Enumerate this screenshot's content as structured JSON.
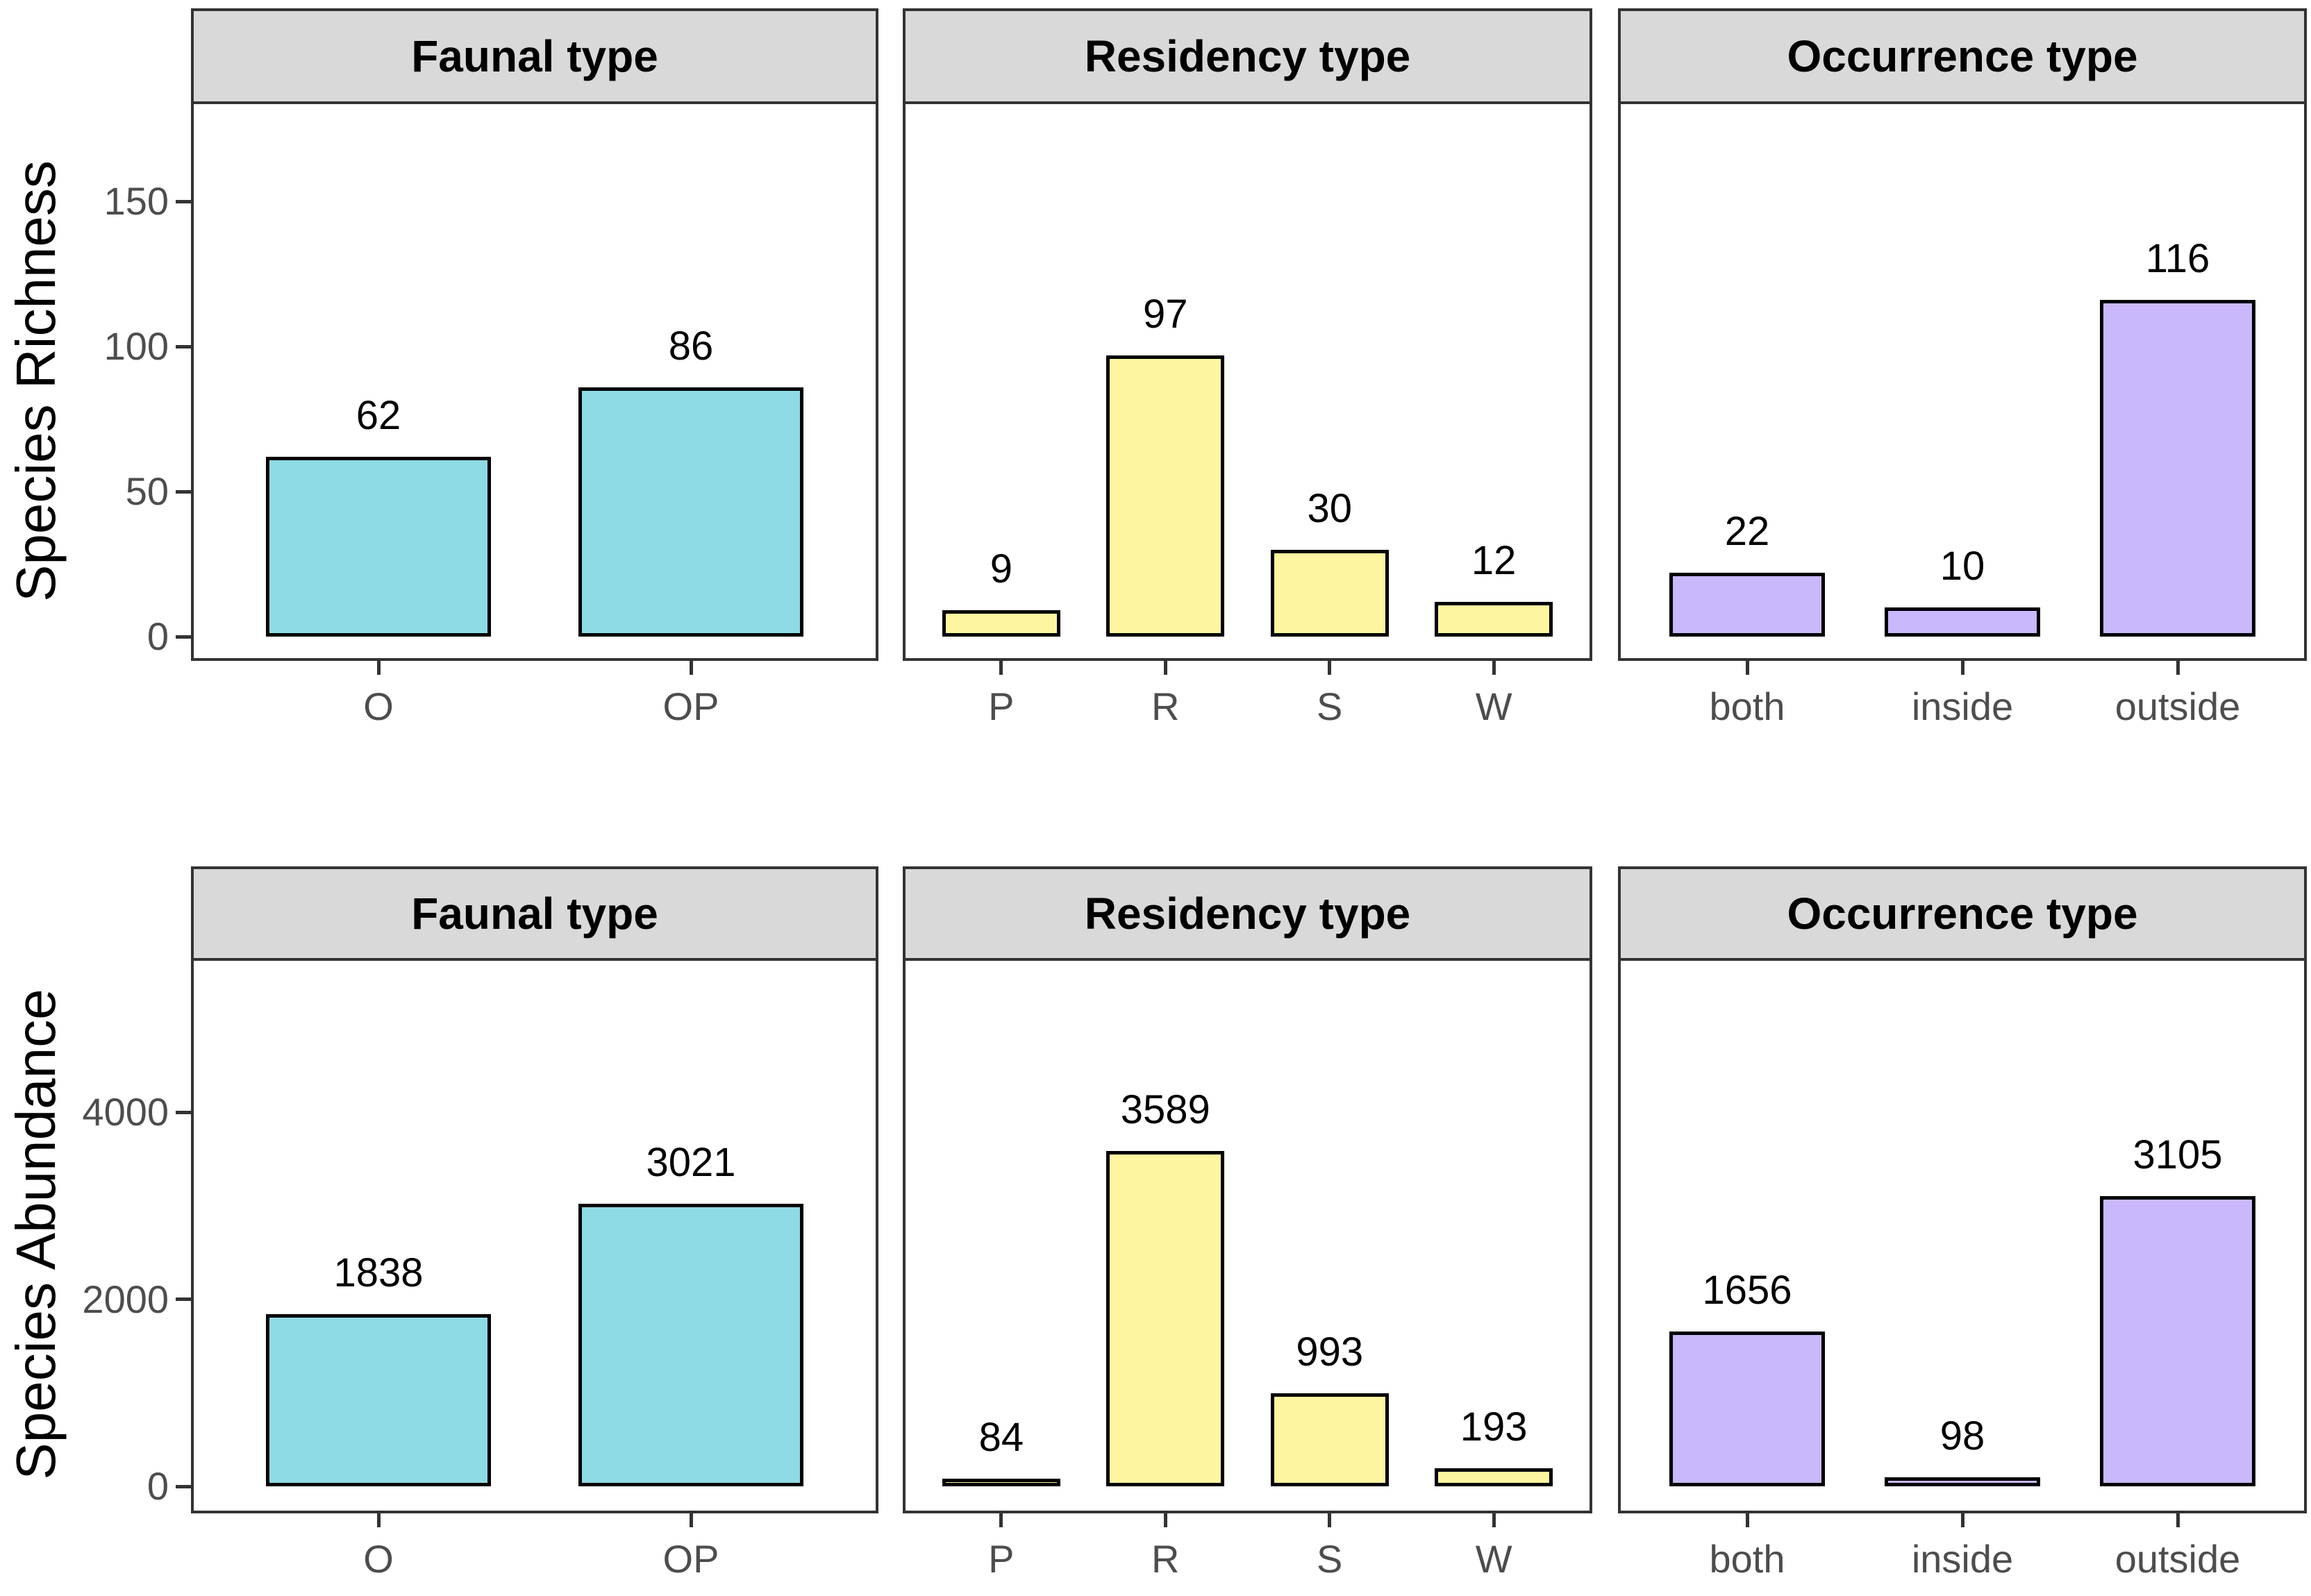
{
  "chart_data": {
    "type": "bar",
    "layout": "faceted bar charts, 2 rows x 3 columns (ggplot-style facet strips), grid off, no legend, value labels above bars",
    "colors": {
      "faunal": "#8FDBE4",
      "residency": "#FDF5A0",
      "occurrence": "#C9B8FB",
      "strip_bg": "#D9D9D9",
      "panel_border": "#333333",
      "bar_outline": "#000000",
      "tick_text": "#4D4D4D",
      "value_text": "#000000"
    },
    "rows": [
      {
        "ylabel": "Species Richness",
        "yticks": [
          0,
          50,
          100,
          150
        ],
        "ylim": [
          0,
          184
        ],
        "panels": [
          {
            "title": "Faunal type",
            "categories": [
              "O",
              "OP"
            ],
            "values": [
              62,
              86
            ],
            "color_key": "faunal"
          },
          {
            "title": "Residency type",
            "categories": [
              "P",
              "R",
              "S",
              "W"
            ],
            "values": [
              9,
              97,
              30,
              12
            ],
            "color_key": "residency"
          },
          {
            "title": "Occurrence type",
            "categories": [
              "both",
              "inside",
              "outside"
            ],
            "values": [
              22,
              10,
              116
            ],
            "color_key": "occurrence"
          }
        ]
      },
      {
        "ylabel": "Species Abundance",
        "yticks": [
          0,
          2000,
          4000
        ],
        "ylim": [
          0,
          5650
        ],
        "panels": [
          {
            "title": "Faunal type",
            "categories": [
              "O",
              "OP"
            ],
            "values": [
              1838,
              3021
            ],
            "color_key": "faunal"
          },
          {
            "title": "Residency type",
            "categories": [
              "P",
              "R",
              "S",
              "W"
            ],
            "values": [
              84,
              3589,
              993,
              193
            ],
            "color_key": "residency"
          },
          {
            "title": "Occurrence type",
            "categories": [
              "both",
              "inside",
              "outside"
            ],
            "values": [
              1656,
              98,
              3105
            ],
            "color_key": "occurrence"
          }
        ]
      }
    ]
  }
}
